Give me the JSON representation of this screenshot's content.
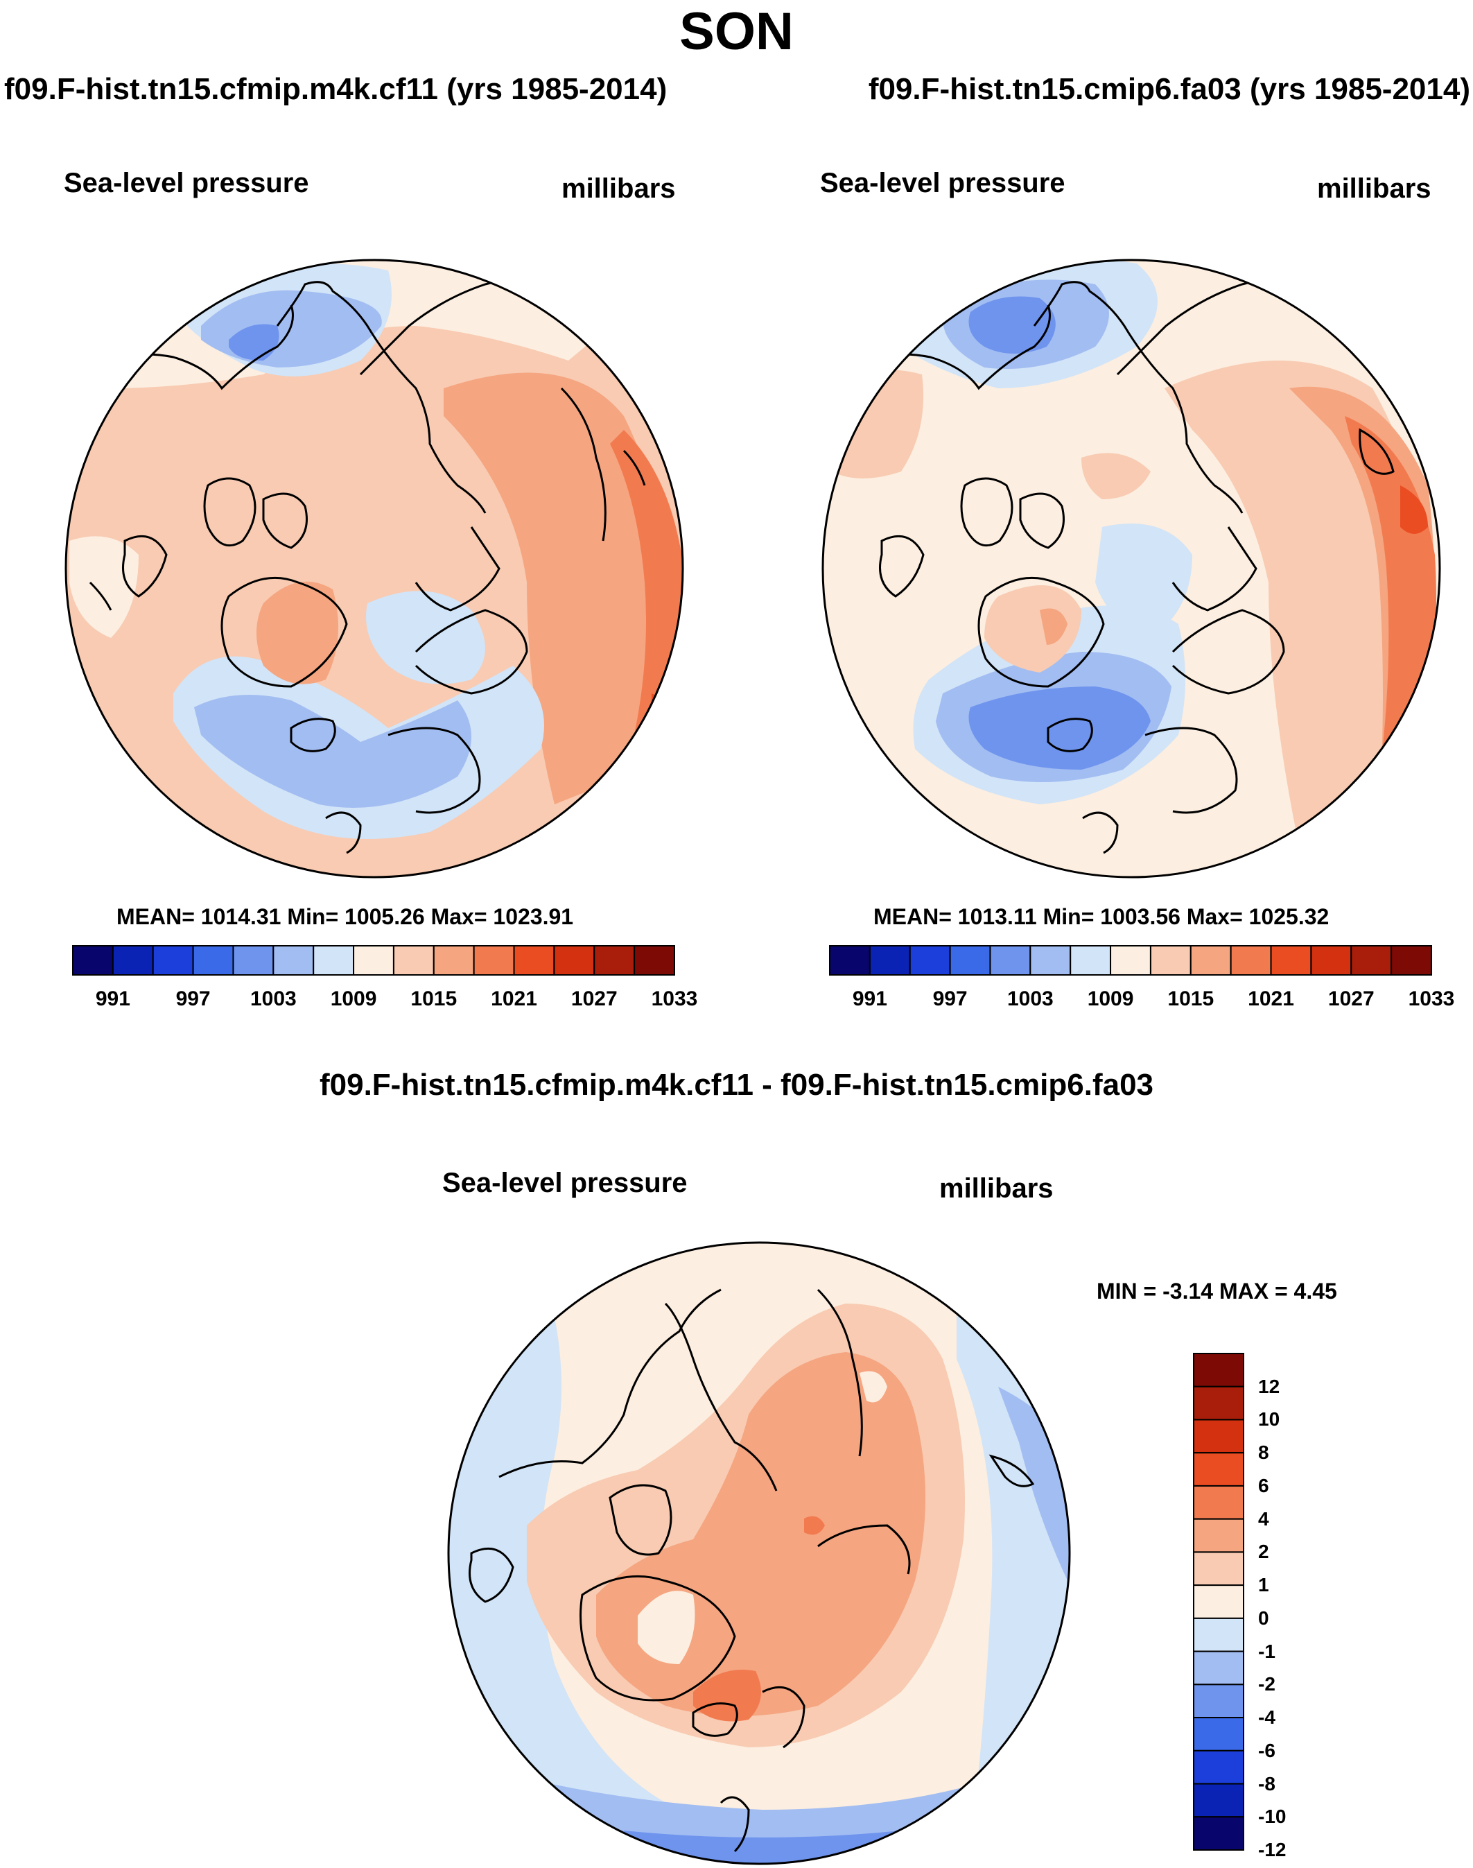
{
  "title": "SON",
  "panels": [
    {
      "id": "left",
      "case_title": "f09.F-hist.tn15.cfmip.m4k.cf11 (yrs 1985-2014)",
      "variable": "Sea-level pressure",
      "units": "millibars",
      "stats": "MEAN= 1014.31  Min= 1005.26  Max= 1023.91"
    },
    {
      "id": "right",
      "case_title": "f09.F-hist.tn15.cmip6.fa03 (yrs 1985-2014)",
      "variable": "Sea-level pressure",
      "units": "millibars",
      "stats": "MEAN= 1013.11  Min= 1003.56  Max= 1025.32"
    }
  ],
  "abs_colorbar": {
    "tick_labels": [
      "991",
      "997",
      "1003",
      "1009",
      "1015",
      "1021",
      "1027",
      "1033"
    ],
    "colors": [
      "#08066c",
      "#0a23b4",
      "#1c3fdc",
      "#3a6ae8",
      "#6f94ee",
      "#a2bdf2",
      "#d2e4f7",
      "#fceee0",
      "#f8cbb2",
      "#f5a580",
      "#f27a4f",
      "#ea4d22",
      "#d3310f",
      "#a81e0b",
      "#7e0a05"
    ]
  },
  "diff": {
    "title": "f09.F-hist.tn15.cfmip.m4k.cf11 - f09.F-hist.tn15.cmip6.fa03",
    "variable": "Sea-level pressure",
    "units": "millibars",
    "stats": "MIN =  -3.14 MAX =   4.45",
    "colorbar": {
      "tick_labels": [
        "12",
        "10",
        "8",
        "6",
        "4",
        "2",
        "1",
        "0",
        "-1",
        "-2",
        "-4",
        "-6",
        "-8",
        "-10",
        "-12"
      ],
      "colors": [
        "#7e0a05",
        "#a81e0b",
        "#d3310f",
        "#ea4d22",
        "#f27a4f",
        "#f5a580",
        "#f8cbb2",
        "#fceee0",
        "#d2e4f7",
        "#a2bdf2",
        "#6f94ee",
        "#3a6ae8",
        "#1c3fdc",
        "#0a23b4",
        "#08066c"
      ]
    }
  }
}
